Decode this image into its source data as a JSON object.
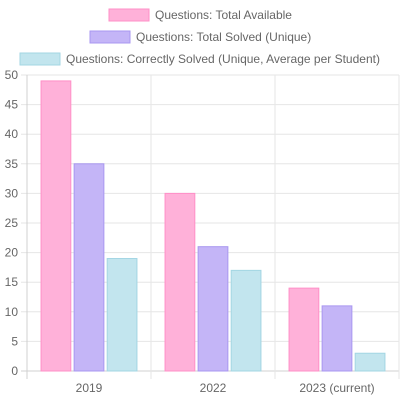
{
  "chart_data": {
    "type": "bar",
    "categories": [
      "2019",
      "2022",
      "2023 (current)"
    ],
    "series": [
      {
        "name": "Questions: Total Available",
        "values": [
          49,
          30,
          14
        ],
        "color": "#ffb1d9",
        "border": "#ff8fc7"
      },
      {
        "name": "Questions: Total Solved (Unique)",
        "values": [
          35,
          21,
          11
        ],
        "color": "#c4b5f7",
        "border": "#a997f0"
      },
      {
        "name": "Questions: Correctly Solved (Unique, Average per Student)",
        "values": [
          19,
          17,
          3
        ],
        "color": "#c2e5ee",
        "border": "#a3d6e3"
      }
    ],
    "ylim": [
      0,
      50
    ],
    "yticks": [
      0,
      5,
      10,
      15,
      20,
      25,
      30,
      35,
      40,
      45,
      50
    ],
    "grid": true,
    "legend": "top",
    "xlabel": "",
    "ylabel": ""
  }
}
